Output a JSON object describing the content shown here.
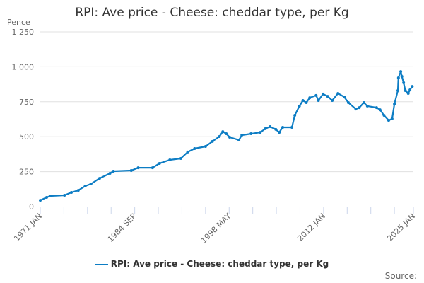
{
  "chart_data": {
    "type": "line",
    "title": "RPI: Ave price - Cheese: cheddar type, per Kg",
    "ylabel": "Pence",
    "xlabel": "",
    "ylim": [
      0,
      1250
    ],
    "y_ticks": [
      0,
      250,
      500,
      750,
      1000,
      1250
    ],
    "y_tick_labels": [
      "0",
      "250",
      "500",
      "750",
      "1 000",
      "1 250"
    ],
    "x_range": [
      "1971-01",
      "2025-01"
    ],
    "x_tick_labels": [
      {
        "date": "1971-01",
        "label": "1971 JAN"
      },
      {
        "date": "1984-09",
        "label": "1984 SEP"
      },
      {
        "date": "1998-05",
        "label": "1998 MAY"
      },
      {
        "date": "2012-01",
        "label": "2012 JAN"
      },
      {
        "date": "2025-01",
        "label": "2025 JAN"
      }
    ],
    "grid": true,
    "legend_position": "bottom",
    "color": "#0d7dc4",
    "series": [
      {
        "name": "RPI: Ave price - Cheese: cheddar type, per Kg",
        "points": [
          [
            "1971-01",
            45
          ],
          [
            "1971-12",
            66
          ],
          [
            "1972-06",
            76
          ],
          [
            "1974-07",
            81
          ],
          [
            "1975-07",
            101
          ],
          [
            "1976-07",
            116
          ],
          [
            "1977-07",
            147
          ],
          [
            "1978-05",
            162
          ],
          [
            "1979-08",
            202
          ],
          [
            "1981-02",
            238
          ],
          [
            "1981-08",
            253
          ],
          [
            "1984-03",
            258
          ],
          [
            "1985-03",
            278
          ],
          [
            "1987-04",
            278
          ],
          [
            "1988-04",
            309
          ],
          [
            "1989-10",
            334
          ],
          [
            "1991-05",
            344
          ],
          [
            "1992-05",
            390
          ],
          [
            "1993-05",
            415
          ],
          [
            "1994-12",
            430
          ],
          [
            "1995-12",
            466
          ],
          [
            "1996-12",
            501
          ],
          [
            "1997-06",
            536
          ],
          [
            "1997-12",
            521
          ],
          [
            "1998-06",
            496
          ],
          [
            "1999-10",
            476
          ],
          [
            "2000-03",
            511
          ],
          [
            "2001-07",
            521
          ],
          [
            "2002-11",
            531
          ],
          [
            "2003-08",
            557
          ],
          [
            "2004-04",
            572
          ],
          [
            "2005-02",
            552
          ],
          [
            "2005-08",
            531
          ],
          [
            "2006-02",
            567
          ],
          [
            "2007-06",
            567
          ],
          [
            "2007-11",
            653
          ],
          [
            "2008-07",
            719
          ],
          [
            "2009-01",
            759
          ],
          [
            "2009-07",
            744
          ],
          [
            "2010-01",
            779
          ],
          [
            "2010-12",
            795
          ],
          [
            "2011-04",
            759
          ],
          [
            "2011-12",
            805
          ],
          [
            "2012-08",
            789
          ],
          [
            "2013-04",
            759
          ],
          [
            "2014-02",
            810
          ],
          [
            "2015-01",
            784
          ],
          [
            "2015-08",
            744
          ],
          [
            "2016-09",
            698
          ],
          [
            "2017-03",
            708
          ],
          [
            "2017-11",
            744
          ],
          [
            "2018-05",
            719
          ],
          [
            "2019-09",
            708
          ],
          [
            "2020-03",
            693
          ],
          [
            "2020-10",
            653
          ],
          [
            "2021-06",
            617
          ],
          [
            "2021-12",
            628
          ],
          [
            "2022-04",
            734
          ],
          [
            "2022-10",
            830
          ],
          [
            "2022-11",
            921
          ],
          [
            "2023-03",
            966
          ],
          [
            "2023-05",
            931
          ],
          [
            "2023-08",
            886
          ],
          [
            "2023-11",
            830
          ],
          [
            "2024-04",
            810
          ],
          [
            "2024-07",
            835
          ],
          [
            "2024-11",
            860
          ]
        ]
      }
    ]
  },
  "legend_label": "RPI: Ave price - Cheese: cheddar type, per Kg",
  "source_label": "Source:"
}
